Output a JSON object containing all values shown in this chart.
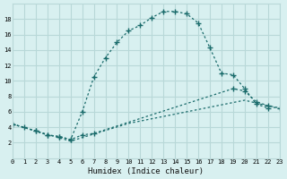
{
  "xlabel": "Humidex (Indice chaleur)",
  "bg_color": "#d8f0f0",
  "grid_color": "#b8d8d8",
  "line_color": "#1a6b6b",
  "xlim": [
    0,
    23
  ],
  "ylim": [
    0,
    20
  ],
  "xticks": [
    0,
    1,
    2,
    3,
    4,
    5,
    6,
    7,
    8,
    9,
    10,
    11,
    12,
    13,
    14,
    15,
    16,
    17,
    18,
    19,
    20,
    21,
    22,
    23
  ],
  "yticks": [
    2,
    4,
    6,
    8,
    10,
    12,
    14,
    16,
    18
  ],
  "curve1_x": [
    0,
    1,
    2,
    3,
    4,
    5,
    6,
    7,
    8,
    9,
    10,
    11,
    12,
    13,
    14,
    15,
    16,
    17,
    18,
    19,
    20,
    21,
    22
  ],
  "curve1_y": [
    4.4,
    4.0,
    3.5,
    3.0,
    2.8,
    2.4,
    6.0,
    10.5,
    13.0,
    15.0,
    16.5,
    17.2,
    18.2,
    19.0,
    19.0,
    18.7,
    17.5,
    14.3,
    11.0,
    10.8,
    9.0,
    7.0,
    6.5
  ],
  "curve2_x": [
    0,
    2,
    3,
    4,
    5,
    6,
    7,
    19,
    20,
    21,
    22,
    23
  ],
  "curve2_y": [
    4.4,
    3.5,
    3.0,
    2.8,
    2.4,
    3.0,
    3.2,
    9.0,
    8.7,
    7.3,
    6.8,
    6.5
  ],
  "curve3_x": [
    0,
    5,
    10,
    15,
    20,
    23
  ],
  "curve3_y": [
    4.4,
    2.2,
    4.5,
    6.0,
    7.5,
    6.4
  ]
}
